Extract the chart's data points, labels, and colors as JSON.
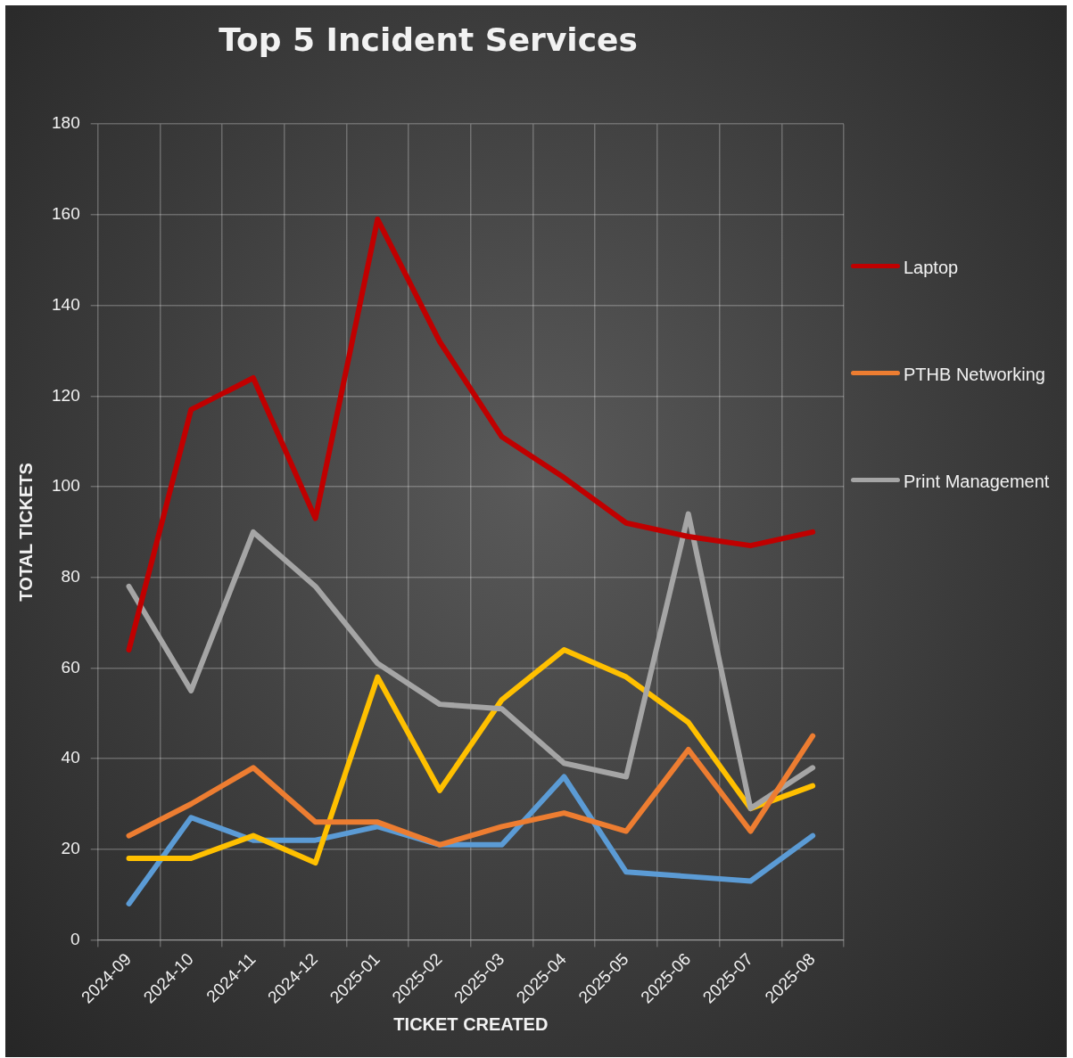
{
  "chart_data": {
    "type": "line",
    "title": "Top 5 Incident Services",
    "xlabel": "TICKET CREATED",
    "ylabel": "TOTAL TICKETS",
    "categories": [
      "2024-09",
      "2024-10",
      "2024-11",
      "2024-12",
      "2025-01",
      "2025-02",
      "2025-03",
      "2025-04",
      "2025-05",
      "2025-06",
      "2025-07",
      "2025-08"
    ],
    "series": [
      {
        "name": "Laptop",
        "color": "#c00000",
        "values": [
          64,
          117,
          124,
          93,
          159,
          132,
          111,
          102,
          92,
          89,
          87,
          90
        ]
      },
      {
        "name": "PTHB Networking",
        "color": "#ed7d31",
        "values": [
          23,
          30,
          38,
          26,
          26,
          21,
          25,
          28,
          24,
          42,
          24,
          45
        ]
      },
      {
        "name": "Print Management",
        "color": "#a5a5a5",
        "values": [
          78,
          55,
          90,
          78,
          61,
          52,
          51,
          39,
          36,
          94,
          29,
          38
        ]
      },
      {
        "color": "#ffc000",
        "values": [
          18,
          18,
          23,
          17,
          58,
          33,
          53,
          64,
          58,
          48,
          29,
          34
        ]
      },
      {
        "color": "#5b9bd5",
        "values": [
          8,
          27,
          22,
          22,
          25,
          21,
          21,
          36,
          15,
          14,
          13,
          23
        ]
      }
    ],
    "ylim": [
      0,
      180
    ],
    "yticks": [
      0,
      20,
      40,
      60,
      80,
      100,
      120,
      140,
      160,
      180
    ],
    "grid": true,
    "legend": "right",
    "marker": "none",
    "line_style": "solid"
  }
}
